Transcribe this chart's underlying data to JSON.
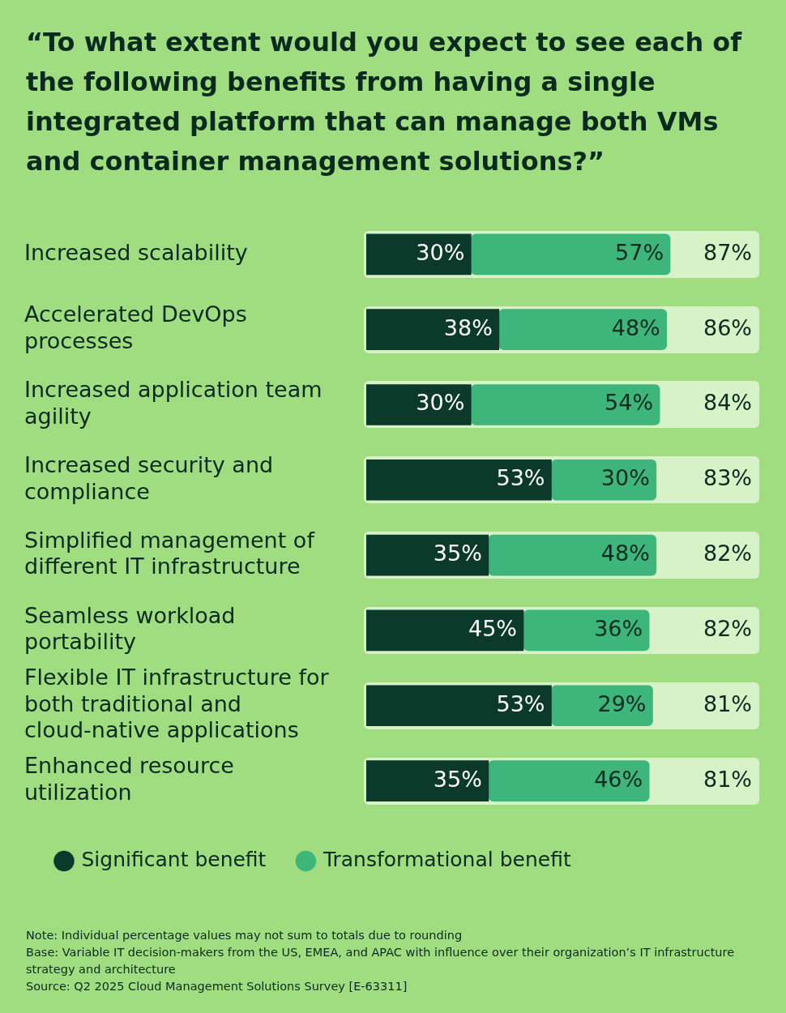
{
  "chart_data": {
    "type": "bar",
    "orientation": "horizontal",
    "stacked": true,
    "title": "“To what extent would you expect to see each of the following benefits from having a single integrated platform that can manage both VMs and container management solutions?”",
    "categories": [
      "Increased scalability",
      "Accelerated DevOps processes",
      "Increased application team agility",
      "Increased security and compliance",
      "Simplified management of different IT infrastructure",
      "Seamless workload portability",
      "Flexible IT infrastructure for both traditional and cloud-native applications",
      "Enhanced resource utilization"
    ],
    "series": [
      {
        "name": "Significant benefit",
        "color": "#0b3a2b",
        "values": [
          30,
          38,
          30,
          53,
          35,
          45,
          53,
          35
        ],
        "value_labels": [
          "30%",
          "38%",
          "30%",
          "53%",
          "35%",
          "45%",
          "53%",
          "35%"
        ]
      },
      {
        "name": "Transformational benefit",
        "color": "#3db57b",
        "values": [
          57,
          48,
          54,
          30,
          48,
          36,
          29,
          46
        ],
        "value_labels": [
          "57%",
          "48%",
          "54%",
          "30%",
          "48%",
          "36%",
          "29%",
          "46%"
        ]
      }
    ],
    "totals": [
      "87%",
      "86%",
      "84%",
      "83%",
      "82%",
      "82%",
      "81%",
      "81%"
    ],
    "legend": "bottom left",
    "grid": false,
    "tick_labels": "y",
    "annotations": [
      "Note: Individual percentage values may not sum to totals due to rounding",
      "Base: Variable IT decision-makers from the US, EMEA, and APAC with influence over their organization’s IT infrastructure strategy and architecture",
      "Source: Q2 2025 Cloud Management Solutions Survey [E-63311]"
    ]
  }
}
